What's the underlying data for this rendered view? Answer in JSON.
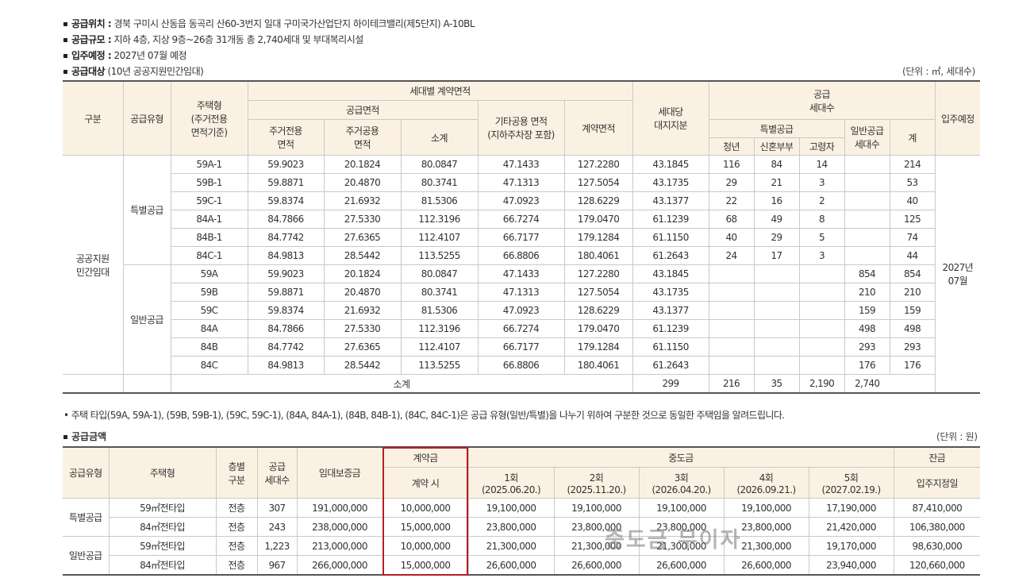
{
  "info": {
    "location_label": "공급위치 :",
    "location": "경북 구미시 산동읍 동곡리 산60-3번지 일대 구미국가산업단지 하이테크밸리(제5단지) A-10BL",
    "scale_label": "공급규모 :",
    "scale": "지하 4층, 지상 9층~26층 31개동 총 2,740세대 및 부대복리시설",
    "movein_label": "입주예정 :",
    "movein": "2027년 07월 예정",
    "target_label": "공급대상",
    "target": "(10년 공공지원민간임대)"
  },
  "unit1": "(단위 : ㎡, 세대수)",
  "t1": {
    "h_category": "구분",
    "h_supply_type": "공급유형",
    "h_house_type": "주택형\n(주거전용\n면적기준)",
    "h_contract_area": "세대별 계약면적",
    "h_supply_area": "공급면적",
    "h_exclusive": "주거전용\n면적",
    "h_common": "주거공용\n면적",
    "h_subtotal": "소계",
    "h_other_common": "기타공용 면적\n(지하주차장 포함)",
    "h_contract": "계약면적",
    "h_land": "세대당\n대지지분",
    "h_supply_units": "공급\n세대수",
    "h_special": "특별공급",
    "h_youth": "청년",
    "h_newlywed": "신혼부부",
    "h_elderly": "고령자",
    "h_general": "일반공급\n세대수",
    "h_total": "계",
    "h_movein": "입주예정",
    "category": "공공지원\n민간임대",
    "group_special": "특별공급",
    "group_general": "일반공급",
    "movein": "2027년\n07월",
    "rows": [
      [
        "59A-1",
        "59.9023",
        "20.1824",
        "80.0847",
        "47.1433",
        "127.2280",
        "43.1845",
        "116",
        "84",
        "14",
        "",
        "214"
      ],
      [
        "59B-1",
        "59.8871",
        "20.4870",
        "80.3741",
        "47.1313",
        "127.5054",
        "43.1735",
        "29",
        "21",
        "3",
        "",
        "53"
      ],
      [
        "59C-1",
        "59.8374",
        "21.6932",
        "81.5306",
        "47.0923",
        "128.6229",
        "43.1377",
        "22",
        "16",
        "2",
        "",
        "40"
      ],
      [
        "84A-1",
        "84.7866",
        "27.5330",
        "112.3196",
        "66.7274",
        "179.0470",
        "61.1239",
        "68",
        "49",
        "8",
        "",
        "125"
      ],
      [
        "84B-1",
        "84.7742",
        "27.6365",
        "112.4107",
        "66.7177",
        "179.1284",
        "61.1150",
        "40",
        "29",
        "5",
        "",
        "74"
      ],
      [
        "84C-1",
        "84.9813",
        "28.5442",
        "113.5255",
        "66.8806",
        "180.4061",
        "61.2643",
        "24",
        "17",
        "3",
        "",
        "44"
      ],
      [
        "59A",
        "59.9023",
        "20.1824",
        "80.0847",
        "47.1433",
        "127.2280",
        "43.1845",
        "",
        "",
        "",
        "854",
        "854"
      ],
      [
        "59B",
        "59.8871",
        "20.4870",
        "80.3741",
        "47.1313",
        "127.5054",
        "43.1735",
        "",
        "",
        "",
        "210",
        "210"
      ],
      [
        "59C",
        "59.8374",
        "21.6932",
        "81.5306",
        "47.0923",
        "128.6229",
        "43.1377",
        "",
        "",
        "",
        "159",
        "159"
      ],
      [
        "84A",
        "84.7866",
        "27.5330",
        "112.3196",
        "66.7274",
        "179.0470",
        "61.1239",
        "",
        "",
        "",
        "498",
        "498"
      ],
      [
        "84B",
        "84.7742",
        "27.6365",
        "112.4107",
        "66.7177",
        "179.1284",
        "61.1150",
        "",
        "",
        "",
        "293",
        "293"
      ],
      [
        "84C",
        "84.9813",
        "28.5442",
        "113.5255",
        "66.8806",
        "180.4061",
        "61.2643",
        "",
        "",
        "",
        "176",
        "176"
      ]
    ],
    "subtotal_label": "소계",
    "subtotal": [
      "299",
      "216",
      "35",
      "2,190",
      "2,740"
    ]
  },
  "note": "• 주택 타입(59A, 59A-1), (59B, 59B-1), (59C, 59C-1), (84A, 84A-1), (84B, 84B-1), (84C, 84C-1)은 공급 유형(일반/특별)을 나누기 위하여 구분한 것으로 동일한 주택임을 알려드립니다.",
  "section2_title": "공급금액",
  "unit2": "(단위 : 원)",
  "t2": {
    "h_supply_type": "공급유형",
    "h_house_type": "주택형",
    "h_floor": "층별\n구분",
    "h_units": "공급\n세대수",
    "h_deposit": "임대보증금",
    "h_contract_money": "계약금",
    "h_contract_when": "계약 시",
    "h_middle": "중도금",
    "h_m1": "1회\n(2025.06.20.)",
    "h_m2": "2회\n(2025.11.20.)",
    "h_m3": "3회\n(2026.04.20.)",
    "h_m4": "4회\n(2026.09.21.)",
    "h_m5": "5회\n(2027.02.19.)",
    "h_balance": "잔금",
    "h_balance_when": "입주지정일",
    "group_special": "특별공급",
    "group_general": "일반공급",
    "rows": [
      [
        "59㎡전타입",
        "전층",
        "307",
        "191,000,000",
        "10,000,000",
        "19,100,000",
        "19,100,000",
        "19,100,000",
        "19,100,000",
        "17,190,000",
        "87,410,000"
      ],
      [
        "84㎡전타입",
        "전층",
        "243",
        "238,000,000",
        "15,000,000",
        "23,800,000",
        "23,800,000",
        "23,800,000",
        "23,800,000",
        "21,420,000",
        "106,380,000"
      ],
      [
        "59㎡전타입",
        "전층",
        "1,223",
        "213,000,000",
        "10,000,000",
        "21,300,000",
        "21,300,000",
        "21,300,000",
        "21,300,000",
        "19,170,000",
        "98,630,000"
      ],
      [
        "84㎡전타입",
        "전층",
        "967",
        "266,000,000",
        "15,000,000",
        "26,600,000",
        "26,600,000",
        "26,600,000",
        "26,600,000",
        "23,940,000",
        "120,660,000"
      ]
    ]
  },
  "watermark": "중도금 무이자",
  "colors": {
    "header_bg": "#fbf1e3",
    "highlight_border": "#b81c23"
  }
}
